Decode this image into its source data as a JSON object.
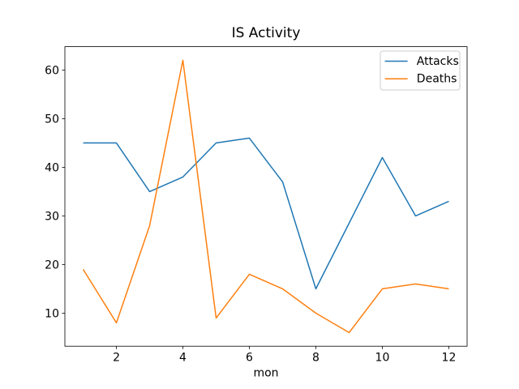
{
  "chart_data": {
    "type": "line",
    "title": "IS Activity",
    "xlabel": "mon",
    "ylabel": "",
    "x": [
      1,
      2,
      3,
      4,
      5,
      6,
      7,
      8,
      9,
      10,
      11,
      12
    ],
    "series": [
      {
        "name": "Attacks",
        "color": "#1f77b4",
        "values": [
          45,
          45,
          35,
          38,
          45,
          46,
          37,
          15,
          28.5,
          42,
          30,
          33
        ]
      },
      {
        "name": "Deaths",
        "color": "#ff7f0e",
        "values": [
          19,
          8,
          28,
          62,
          9,
          18,
          15,
          10,
          6,
          15,
          16,
          15
        ]
      }
    ],
    "xlim": [
      0.45,
      12.55
    ],
    "ylim": [
      3.2,
      64.8
    ],
    "xticks": [
      2,
      4,
      6,
      8,
      10,
      12
    ],
    "yticks": [
      10,
      20,
      30,
      40,
      50,
      60
    ],
    "grid": false,
    "legend": {
      "position": "upper right",
      "entries": [
        "Attacks",
        "Deaths"
      ]
    }
  }
}
